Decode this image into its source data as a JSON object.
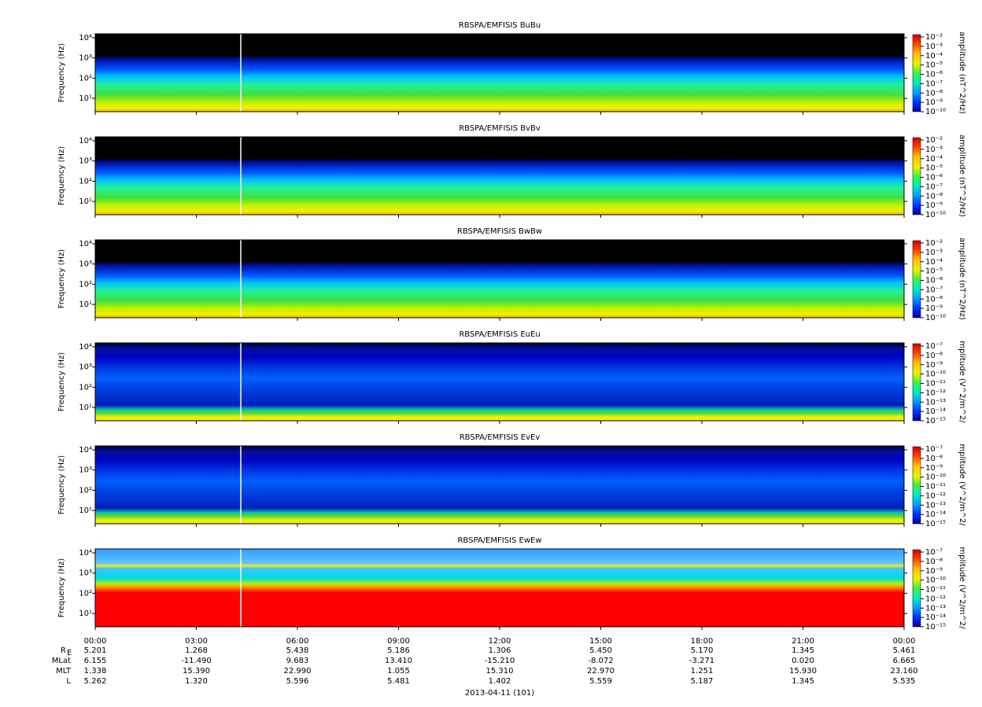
{
  "chart_data": [
    {
      "type": "spectrogram",
      "title": "RBSPA/EMFISIS  BuBu",
      "y_label": "Frequency (Hz)",
      "log_y": true,
      "ylim": [
        2.2,
        15600
      ],
      "yticks": [
        {
          "value": 10,
          "label": "10¹"
        },
        {
          "value": 100,
          "label": "10²"
        },
        {
          "value": 1000,
          "label": "10³"
        },
        {
          "value": 10000,
          "label": "10⁴"
        }
      ],
      "z_label": "amplitude (nT^2/Hz)",
      "zlim": [
        1e-10,
        0.01
      ],
      "zticks": [
        {
          "value": 0.01,
          "label": "10⁻²"
        },
        {
          "value": 0.001,
          "label": "10⁻³"
        },
        {
          "value": 0.0001,
          "label": "10⁻⁴"
        },
        {
          "value": 1e-05,
          "label": "10⁻⁵"
        },
        {
          "value": 1e-06,
          "label": "10⁻⁶"
        },
        {
          "value": 1e-07,
          "label": "10⁻⁷"
        },
        {
          "value": 1e-08,
          "label": "10⁻⁸"
        },
        {
          "value": 1e-09,
          "label": "10⁻⁹"
        },
        {
          "value": 1e-10,
          "label": "10⁻¹⁰"
        }
      ]
    },
    {
      "type": "spectrogram",
      "title": "RBSPA/EMFISIS  BvBv",
      "y_label": "Frequency (Hz)",
      "log_y": true,
      "ylim": [
        2.2,
        15600
      ],
      "yticks": [
        {
          "value": 10,
          "label": "10¹"
        },
        {
          "value": 100,
          "label": "10²"
        },
        {
          "value": 1000,
          "label": "10³"
        },
        {
          "value": 10000,
          "label": "10⁴"
        }
      ],
      "z_label": "amplitude (nT^2/Hz)",
      "zlim": [
        1e-10,
        0.01
      ],
      "zticks": [
        {
          "value": 0.01,
          "label": "10⁻²"
        },
        {
          "value": 0.001,
          "label": "10⁻³"
        },
        {
          "value": 0.0001,
          "label": "10⁻⁴"
        },
        {
          "value": 1e-05,
          "label": "10⁻⁵"
        },
        {
          "value": 1e-06,
          "label": "10⁻⁶"
        },
        {
          "value": 1e-07,
          "label": "10⁻⁷"
        },
        {
          "value": 1e-08,
          "label": "10⁻⁸"
        },
        {
          "value": 1e-09,
          "label": "10⁻⁹"
        },
        {
          "value": 1e-10,
          "label": "10⁻¹⁰"
        }
      ]
    },
    {
      "type": "spectrogram",
      "title": "RBSPA/EMFISIS  BwBw",
      "y_label": "Frequency (Hz)",
      "log_y": true,
      "ylim": [
        2.2,
        15600
      ],
      "yticks": [
        {
          "value": 10,
          "label": "10¹"
        },
        {
          "value": 100,
          "label": "10²"
        },
        {
          "value": 1000,
          "label": "10³"
        },
        {
          "value": 10000,
          "label": "10⁴"
        }
      ],
      "z_label": "amplitude (nT^2/Hz)",
      "zlim": [
        1e-10,
        0.01
      ],
      "zticks": [
        {
          "value": 0.01,
          "label": "10⁻²"
        },
        {
          "value": 0.001,
          "label": "10⁻³"
        },
        {
          "value": 0.0001,
          "label": "10⁻⁴"
        },
        {
          "value": 1e-05,
          "label": "10⁻⁵"
        },
        {
          "value": 1e-06,
          "label": "10⁻⁶"
        },
        {
          "value": 1e-07,
          "label": "10⁻⁷"
        },
        {
          "value": 1e-08,
          "label": "10⁻⁸"
        },
        {
          "value": 1e-09,
          "label": "10⁻⁹"
        },
        {
          "value": 1e-10,
          "label": "10⁻¹⁰"
        }
      ]
    },
    {
      "type": "spectrogram",
      "title": "RBSPA/EMFISIS  EuEu",
      "y_label": "Frequency (Hz)",
      "log_y": true,
      "ylim": [
        2.2,
        15600
      ],
      "yticks": [
        {
          "value": 10,
          "label": "10¹"
        },
        {
          "value": 100,
          "label": "10²"
        },
        {
          "value": 1000,
          "label": "10³"
        },
        {
          "value": 10000,
          "label": "10⁴"
        }
      ],
      "z_label": "mplitude (V^2/m^2/",
      "zlim": [
        1e-15,
        1e-07
      ],
      "zticks": [
        {
          "value": 1e-07,
          "label": "10⁻⁷"
        },
        {
          "value": 1e-08,
          "label": "10⁻⁸"
        },
        {
          "value": 1e-09,
          "label": "10⁻⁹"
        },
        {
          "value": 1e-10,
          "label": "10⁻¹⁰"
        },
        {
          "value": 1e-11,
          "label": "10⁻¹¹"
        },
        {
          "value": 1e-12,
          "label": "10⁻¹²"
        },
        {
          "value": 1e-13,
          "label": "10⁻¹³"
        },
        {
          "value": 1e-14,
          "label": "10⁻¹⁴"
        },
        {
          "value": 1e-15,
          "label": "10⁻¹⁵"
        }
      ]
    },
    {
      "type": "spectrogram",
      "title": "RBSPA/EMFISIS  EvEv",
      "y_label": "Frequency (Hz)",
      "log_y": true,
      "ylim": [
        2.2,
        15600
      ],
      "yticks": [
        {
          "value": 10,
          "label": "10¹"
        },
        {
          "value": 100,
          "label": "10²"
        },
        {
          "value": 1000,
          "label": "10³"
        },
        {
          "value": 10000,
          "label": "10⁴"
        }
      ],
      "z_label": "mplitude (V^2/m^2/",
      "zlim": [
        1e-15,
        1e-07
      ],
      "zticks": [
        {
          "value": 1e-07,
          "label": "10⁻⁷"
        },
        {
          "value": 1e-08,
          "label": "10⁻⁸"
        },
        {
          "value": 1e-09,
          "label": "10⁻⁹"
        },
        {
          "value": 1e-10,
          "label": "10⁻¹⁰"
        },
        {
          "value": 1e-11,
          "label": "10⁻¹¹"
        },
        {
          "value": 1e-12,
          "label": "10⁻¹²"
        },
        {
          "value": 1e-13,
          "label": "10⁻¹³"
        },
        {
          "value": 1e-14,
          "label": "10⁻¹⁴"
        },
        {
          "value": 1e-15,
          "label": "10⁻¹⁵"
        }
      ]
    },
    {
      "type": "spectrogram",
      "title": "RBSPA/EMFISIS  EwEw",
      "y_label": "Frequency (Hz)",
      "log_y": true,
      "ylim": [
        2.2,
        15600
      ],
      "yticks": [
        {
          "value": 10,
          "label": "10¹"
        },
        {
          "value": 100,
          "label": "10²"
        },
        {
          "value": 1000,
          "label": "10³"
        },
        {
          "value": 10000,
          "label": "10⁴"
        }
      ],
      "z_label": "mplitude (V^2/m^2/",
      "zlim": [
        1e-15,
        1e-07
      ],
      "zticks": [
        {
          "value": 1e-07,
          "label": "10⁻⁷"
        },
        {
          "value": 1e-08,
          "label": "10⁻⁸"
        },
        {
          "value": 1e-09,
          "label": "10⁻⁹"
        },
        {
          "value": 1e-10,
          "label": "10⁻¹⁰"
        },
        {
          "value": 1e-11,
          "label": "10⁻¹¹"
        },
        {
          "value": 1e-12,
          "label": "10⁻¹²"
        },
        {
          "value": 1e-13,
          "label": "10⁻¹³"
        },
        {
          "value": 1e-14,
          "label": "10⁻¹⁴"
        },
        {
          "value": 1e-15,
          "label": "10⁻¹⁵"
        }
      ]
    }
  ],
  "time_axis": {
    "xlim": [
      0,
      24
    ],
    "xticks": [
      {
        "value": 0,
        "label": "00:00"
      },
      {
        "value": 3,
        "label": "03:00"
      },
      {
        "value": 6,
        "label": "06:00"
      },
      {
        "value": 9,
        "label": "09:00"
      },
      {
        "value": 12,
        "label": "12:00"
      },
      {
        "value": 15,
        "label": "15:00"
      },
      {
        "value": 18,
        "label": "18:00"
      },
      {
        "value": 21,
        "label": "21:00"
      },
      {
        "value": 24,
        "label": "00:00"
      }
    ],
    "x_label": "2013-04-11 (101)"
  },
  "ephemeris": [
    {
      "label": "R",
      "sub": "E",
      "values": [
        "5.201",
        "1.268",
        "5.438",
        "5.186",
        "1.306",
        "5.450",
        "5.170",
        "1.345",
        "5.461"
      ]
    },
    {
      "label": "MLat",
      "values": [
        "6.155",
        "-11.490",
        "9.683",
        "13.410",
        "-15.210",
        "-8.072",
        "-3.271",
        "0.020",
        "6.665"
      ]
    },
    {
      "label": "MLT",
      "values": [
        "1.338",
        "15.390",
        "22.990",
        "1.055",
        "15.310",
        "22.970",
        "1.251",
        "15.930",
        "23.160"
      ]
    },
    {
      "label": "L",
      "values": [
        "5.262",
        "1.320",
        "5.596",
        "5.481",
        "1.402",
        "5.559",
        "5.187",
        "1.345",
        "5.535"
      ]
    }
  ]
}
